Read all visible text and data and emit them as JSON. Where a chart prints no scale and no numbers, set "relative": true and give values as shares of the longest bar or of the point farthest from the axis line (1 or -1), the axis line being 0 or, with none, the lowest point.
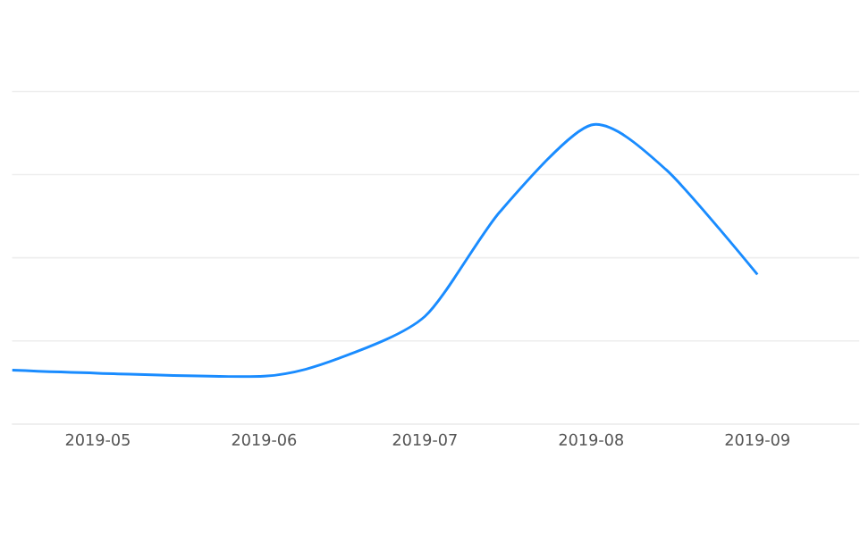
{
  "chart_data": {
    "type": "line",
    "relative": true,
    "x": [
      "2019-04-15",
      "2019-05",
      "2019-06",
      "2019-06-15",
      "2019-07",
      "2019-07-15",
      "2019-08",
      "2019-08-15",
      "2019-09"
    ],
    "series": [
      {
        "color": "#1a8cff",
        "values": [
          0.18,
          0.17,
          0.16,
          0.22,
          0.36,
          0.71,
          1,
          0.85,
          0.5
        ]
      }
    ],
    "xlim": [
      "2019-04-15",
      "2019-09-20"
    ],
    "xticks": [
      "2019-05",
      "2019-06",
      "2019-07",
      "2019-08",
      "2019-09"
    ],
    "grid": "y",
    "marker": "none",
    "line_style": "solid"
  }
}
